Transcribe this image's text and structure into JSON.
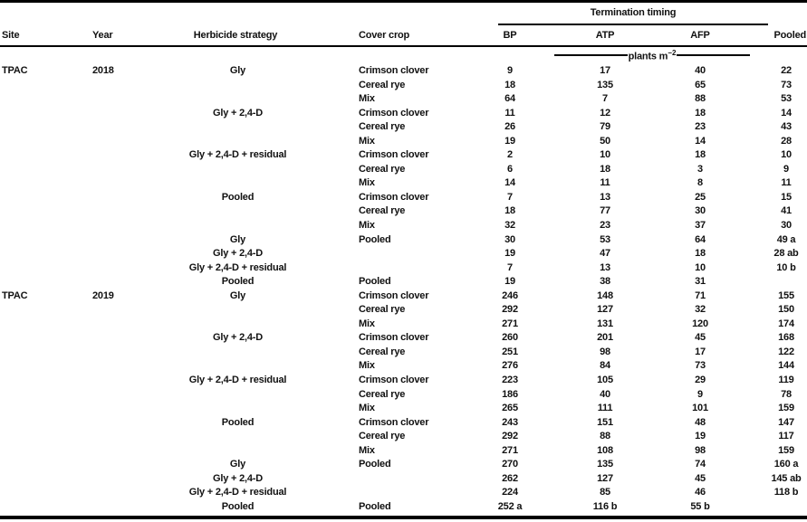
{
  "colors": {
    "background": "#ffffff",
    "text": "#111111",
    "rule": "#000000"
  },
  "table": {
    "spanner_label": "Termination timing",
    "unit": {
      "text": "plants m",
      "sup": "−2"
    },
    "columns": [
      "Site",
      "Year",
      "Herbicide strategy",
      "Cover crop",
      "BP",
      "ATP",
      "AFP",
      "Pooled"
    ],
    "rows": [
      [
        "TPAC",
        "2018",
        "Gly",
        "Crimson clover",
        "9",
        "17",
        "40",
        "22"
      ],
      [
        "",
        "",
        "",
        "Cereal rye",
        "18",
        "135",
        "65",
        "73"
      ],
      [
        "",
        "",
        "",
        "Mix",
        "64",
        "7",
        "88",
        "53"
      ],
      [
        "",
        "",
        "Gly + 2,4-D",
        "Crimson clover",
        "11",
        "12",
        "18",
        "14"
      ],
      [
        "",
        "",
        "",
        "Cereal rye",
        "26",
        "79",
        "23",
        "43"
      ],
      [
        "",
        "",
        "",
        "Mix",
        "19",
        "50",
        "14",
        "28"
      ],
      [
        "",
        "",
        "Gly + 2,4-D + residual",
        "Crimson clover",
        "2",
        "10",
        "18",
        "10"
      ],
      [
        "",
        "",
        "",
        "Cereal rye",
        "6",
        "18",
        "3",
        "9"
      ],
      [
        "",
        "",
        "",
        "Mix",
        "14",
        "11",
        "8",
        "11"
      ],
      [
        "",
        "",
        "Pooled",
        "Crimson clover",
        "7",
        "13",
        "25",
        "15"
      ],
      [
        "",
        "",
        "",
        "Cereal rye",
        "18",
        "77",
        "30",
        "41"
      ],
      [
        "",
        "",
        "",
        "Mix",
        "32",
        "23",
        "37",
        "30"
      ],
      [
        "",
        "",
        "Gly",
        "Pooled",
        "30",
        "53",
        "64",
        "49 a"
      ],
      [
        "",
        "",
        "Gly + 2,4-D",
        "",
        "19",
        "47",
        "18",
        "28 ab"
      ],
      [
        "",
        "",
        "Gly + 2,4-D + residual",
        "",
        "7",
        "13",
        "10",
        "10 b"
      ],
      [
        "",
        "",
        "Pooled",
        "Pooled",
        "19",
        "38",
        "31",
        ""
      ],
      [
        "TPAC",
        "2019",
        "Gly",
        "Crimson clover",
        "246",
        "148",
        "71",
        "155"
      ],
      [
        "",
        "",
        "",
        "Cereal rye",
        "292",
        "127",
        "32",
        "150"
      ],
      [
        "",
        "",
        "",
        "Mix",
        "271",
        "131",
        "120",
        "174"
      ],
      [
        "",
        "",
        "Gly + 2,4-D",
        "Crimson clover",
        "260",
        "201",
        "45",
        "168"
      ],
      [
        "",
        "",
        "",
        "Cereal rye",
        "251",
        "98",
        "17",
        "122"
      ],
      [
        "",
        "",
        "",
        "Mix",
        "276",
        "84",
        "73",
        "144"
      ],
      [
        "",
        "",
        "Gly + 2,4-D + residual",
        "Crimson clover",
        "223",
        "105",
        "29",
        "119"
      ],
      [
        "",
        "",
        "",
        "Cereal rye",
        "186",
        "40",
        "9",
        "78"
      ],
      [
        "",
        "",
        "",
        "Mix",
        "265",
        "111",
        "101",
        "159"
      ],
      [
        "",
        "",
        "Pooled",
        "Crimson clover",
        "243",
        "151",
        "48",
        "147"
      ],
      [
        "",
        "",
        "",
        "Cereal rye",
        "292",
        "88",
        "19",
        "117"
      ],
      [
        "",
        "",
        "",
        "Mix",
        "271",
        "108",
        "98",
        "159"
      ],
      [
        "",
        "",
        "Gly",
        "Pooled",
        "270",
        "135",
        "74",
        "160 a"
      ],
      [
        "",
        "",
        "Gly + 2,4-D",
        "",
        "262",
        "127",
        "45",
        "145 ab"
      ],
      [
        "",
        "",
        "Gly + 2,4-D + residual",
        "",
        "224",
        "85",
        "46",
        "118 b"
      ],
      [
        "",
        "",
        "Pooled",
        "Pooled",
        "252 a",
        "116 b",
        "55 b",
        ""
      ]
    ]
  }
}
